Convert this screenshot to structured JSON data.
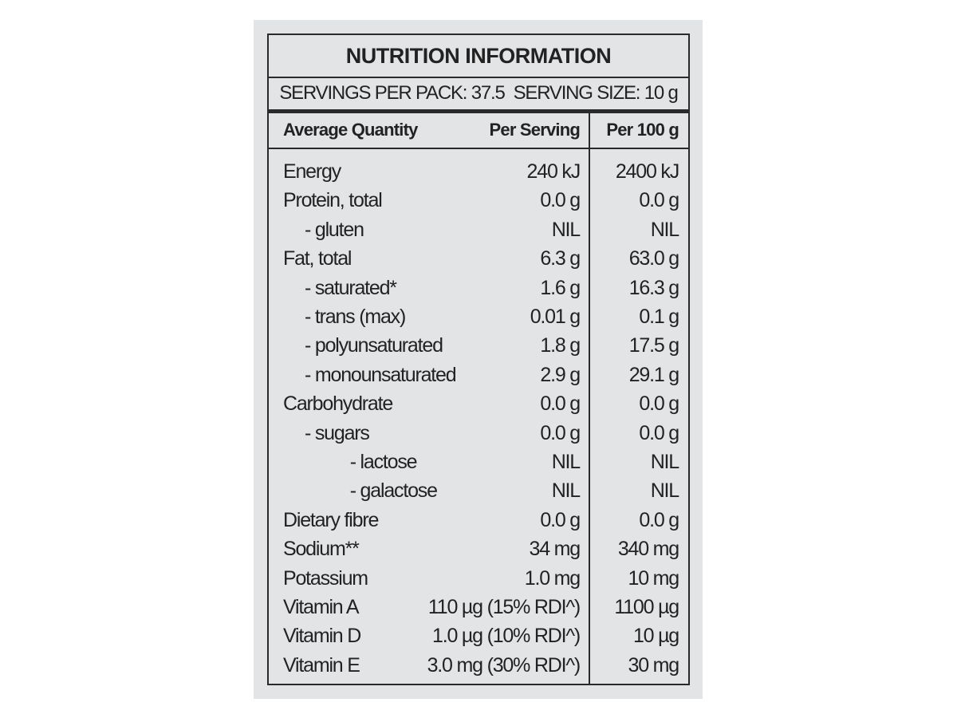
{
  "title": "NUTRITION INFORMATION",
  "servings": "SERVINGS PER PACK: 37.5  SERVING SIZE: 10 g",
  "table": {
    "header": [
      "Average Quantity",
      "Per Serving",
      "Per 100 g"
    ],
    "rows": [
      [
        "Energy",
        "240 kJ",
        "2400 kJ"
      ],
      [
        "Protein, total",
        "0.0 g",
        "0.0 g"
      ],
      [
        "- gluten",
        "NIL",
        "NIL"
      ],
      [
        "Fat, total",
        "6.3 g",
        "63.0 g"
      ],
      [
        "- saturated*",
        "1.6 g",
        "16.3 g"
      ],
      [
        "- trans (max)",
        "0.01 g",
        "0.1 g"
      ],
      [
        "- polyunsaturated",
        "1.8 g",
        "17.5 g"
      ],
      [
        "- monounsaturated",
        "2.9 g",
        "29.1 g"
      ],
      [
        "Carbohydrate",
        "0.0 g",
        "0.0 g"
      ],
      [
        "- sugars",
        "0.0 g",
        "0.0 g"
      ],
      [
        "- lactose",
        "NIL",
        "NIL"
      ],
      [
        "- galactose",
        "NIL",
        "NIL"
      ],
      [
        "Dietary fibre",
        "0.0 g",
        "0.0 g"
      ],
      [
        "Sodium**",
        "34 mg",
        "340 mg"
      ],
      [
        "Potassium",
        "1.0 mg",
        "10 mg"
      ],
      [
        "Vitamin A",
        "110 µg (15% RDI^)",
        "1100 µg"
      ],
      [
        "Vitamin D",
        "1.0 µg (10% RDI^)",
        "10 µg"
      ],
      [
        "Vitamin E",
        "3.0 mg (30% RDI^)",
        "30 mg"
      ]
    ]
  }
}
